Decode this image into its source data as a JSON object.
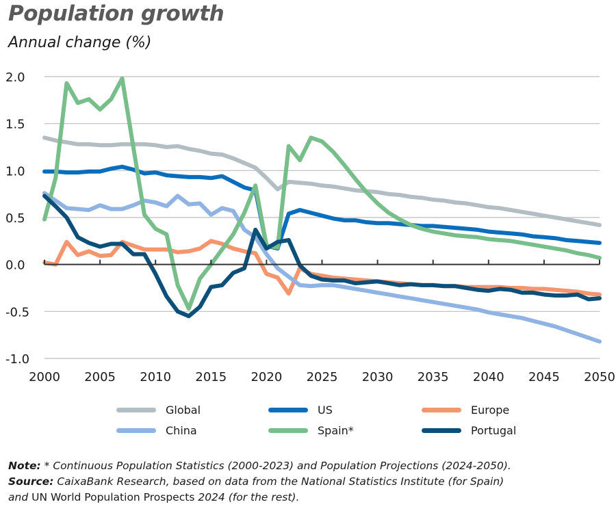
{
  "header": {
    "title": "Population growth",
    "subtitle": "Annual change (%)"
  },
  "notes": {
    "note_label": "Note:",
    "note_text": " * Continuous Population Statistics (2000-2023) and Population Projections (2024-2050).",
    "source_label": "Source:",
    "source_text": " CaixaBank Research, based on data from the National Statistics Institute (for Spain)",
    "source_line2_a": "and",
    "source_line2_b": " UN World Population Prospects ",
    "source_line2_c": "2024 (for the rest)."
  },
  "chart_data": {
    "type": "line",
    "title": "Population growth",
    "subtitle": "Annual change (%)",
    "xlabel": "",
    "ylabel": "Annual change (%)",
    "xlim": [
      2000,
      2050
    ],
    "ylim": [
      -1.0,
      2.0
    ],
    "x_ticks": [
      2000,
      2005,
      2010,
      2015,
      2020,
      2025,
      2030,
      2035,
      2040,
      2045,
      2050
    ],
    "y_ticks": [
      "2.0",
      "1.5",
      "1.0",
      "0.5",
      "0.0",
      "-0.5",
      "-1.0"
    ],
    "grid": "horizontal",
    "legend_position": "bottom",
    "x": [
      2000,
      2001,
      2002,
      2003,
      2004,
      2005,
      2006,
      2007,
      2008,
      2009,
      2010,
      2011,
      2012,
      2013,
      2014,
      2015,
      2016,
      2017,
      2018,
      2019,
      2020,
      2021,
      2022,
      2023,
      2024,
      2025,
      2026,
      2027,
      2028,
      2029,
      2030,
      2031,
      2032,
      2033,
      2034,
      2035,
      2036,
      2037,
      2038,
      2039,
      2040,
      2041,
      2042,
      2043,
      2044,
      2045,
      2046,
      2047,
      2048,
      2049,
      2050
    ],
    "series": [
      {
        "name": "Global",
        "color": "#b2bec3",
        "values": [
          1.35,
          1.32,
          1.3,
          1.28,
          1.28,
          1.27,
          1.27,
          1.28,
          1.28,
          1.28,
          1.27,
          1.25,
          1.26,
          1.23,
          1.21,
          1.18,
          1.17,
          1.13,
          1.08,
          1.03,
          0.92,
          0.8,
          0.88,
          0.87,
          0.86,
          0.84,
          0.83,
          0.81,
          0.79,
          0.78,
          0.77,
          0.75,
          0.74,
          0.72,
          0.71,
          0.69,
          0.68,
          0.66,
          0.65,
          0.63,
          0.61,
          0.6,
          0.58,
          0.56,
          0.54,
          0.52,
          0.5,
          0.48,
          0.46,
          0.44,
          0.42
        ]
      },
      {
        "name": "US",
        "color": "#0a6ebd",
        "values": [
          0.99,
          0.99,
          0.98,
          0.98,
          0.99,
          0.99,
          1.02,
          1.04,
          1.01,
          0.97,
          0.98,
          0.95,
          0.94,
          0.93,
          0.93,
          0.92,
          0.94,
          0.88,
          0.82,
          0.79,
          0.2,
          0.17,
          0.54,
          0.58,
          0.55,
          0.52,
          0.49,
          0.47,
          0.47,
          0.45,
          0.44,
          0.44,
          0.43,
          0.42,
          0.41,
          0.41,
          0.4,
          0.39,
          0.38,
          0.37,
          0.35,
          0.34,
          0.33,
          0.32,
          0.3,
          0.29,
          0.28,
          0.26,
          0.25,
          0.24,
          0.23
        ]
      },
      {
        "name": "Europe",
        "color": "#f4956e",
        "values": [
          0.02,
          0.0,
          0.24,
          0.1,
          0.14,
          0.09,
          0.1,
          0.24,
          0.2,
          0.16,
          0.16,
          0.16,
          0.13,
          0.14,
          0.17,
          0.25,
          0.22,
          0.17,
          0.14,
          0.12,
          -0.1,
          -0.14,
          -0.31,
          -0.04,
          -0.1,
          -0.12,
          -0.14,
          -0.15,
          -0.16,
          -0.17,
          -0.18,
          -0.19,
          -0.2,
          -0.21,
          -0.22,
          -0.22,
          -0.23,
          -0.23,
          -0.24,
          -0.24,
          -0.24,
          -0.24,
          -0.25,
          -0.25,
          -0.26,
          -0.26,
          -0.27,
          -0.28,
          -0.29,
          -0.31,
          -0.32
        ]
      },
      {
        "name": "China",
        "color": "#8fb3e3",
        "values": [
          0.76,
          0.68,
          0.6,
          0.59,
          0.58,
          0.63,
          0.59,
          0.59,
          0.63,
          0.68,
          0.66,
          0.62,
          0.73,
          0.64,
          0.65,
          0.53,
          0.6,
          0.57,
          0.37,
          0.29,
          0.11,
          -0.04,
          -0.13,
          -0.22,
          -0.23,
          -0.22,
          -0.22,
          -0.24,
          -0.26,
          -0.28,
          -0.3,
          -0.32,
          -0.34,
          -0.36,
          -0.38,
          -0.4,
          -0.42,
          -0.44,
          -0.46,
          -0.48,
          -0.51,
          -0.53,
          -0.55,
          -0.57,
          -0.6,
          -0.63,
          -0.66,
          -0.7,
          -0.74,
          -0.78,
          -0.82
        ]
      },
      {
        "name": "Spain*",
        "color": "#77be8a",
        "values": [
          0.48,
          0.92,
          1.93,
          1.72,
          1.76,
          1.65,
          1.76,
          1.98,
          1.25,
          0.53,
          0.38,
          0.32,
          -0.22,
          -0.47,
          -0.15,
          0.0,
          0.16,
          0.32,
          0.55,
          0.84,
          0.2,
          0.18,
          1.26,
          1.11,
          1.35,
          1.31,
          1.2,
          1.06,
          0.91,
          0.77,
          0.65,
          0.55,
          0.48,
          0.42,
          0.38,
          0.35,
          0.33,
          0.31,
          0.3,
          0.29,
          0.27,
          0.26,
          0.25,
          0.23,
          0.21,
          0.19,
          0.17,
          0.15,
          0.12,
          0.1,
          0.07
        ]
      },
      {
        "name": "Portugal",
        "color": "#0c4f79",
        "values": [
          0.73,
          0.62,
          0.5,
          0.29,
          0.23,
          0.19,
          0.22,
          0.22,
          0.11,
          0.11,
          -0.1,
          -0.34,
          -0.5,
          -0.55,
          -0.45,
          -0.24,
          -0.22,
          -0.09,
          -0.04,
          0.37,
          0.17,
          0.24,
          0.26,
          -0.01,
          -0.12,
          -0.16,
          -0.17,
          -0.17,
          -0.2,
          -0.19,
          -0.18,
          -0.2,
          -0.22,
          -0.21,
          -0.22,
          -0.22,
          -0.23,
          -0.23,
          -0.25,
          -0.27,
          -0.28,
          -0.26,
          -0.27,
          -0.3,
          -0.3,
          -0.32,
          -0.33,
          -0.33,
          -0.32,
          -0.37,
          -0.36
        ]
      }
    ]
  },
  "legend": {
    "items": [
      {
        "label": "Global",
        "color": "#b2bec3"
      },
      {
        "label": "US",
        "color": "#0a6ebd"
      },
      {
        "label": "Europe",
        "color": "#f4956e"
      },
      {
        "label": "China",
        "color": "#8fb3e3"
      },
      {
        "label": "Spain*",
        "color": "#77be8a"
      },
      {
        "label": "Portugal",
        "color": "#0c4f79"
      }
    ]
  }
}
